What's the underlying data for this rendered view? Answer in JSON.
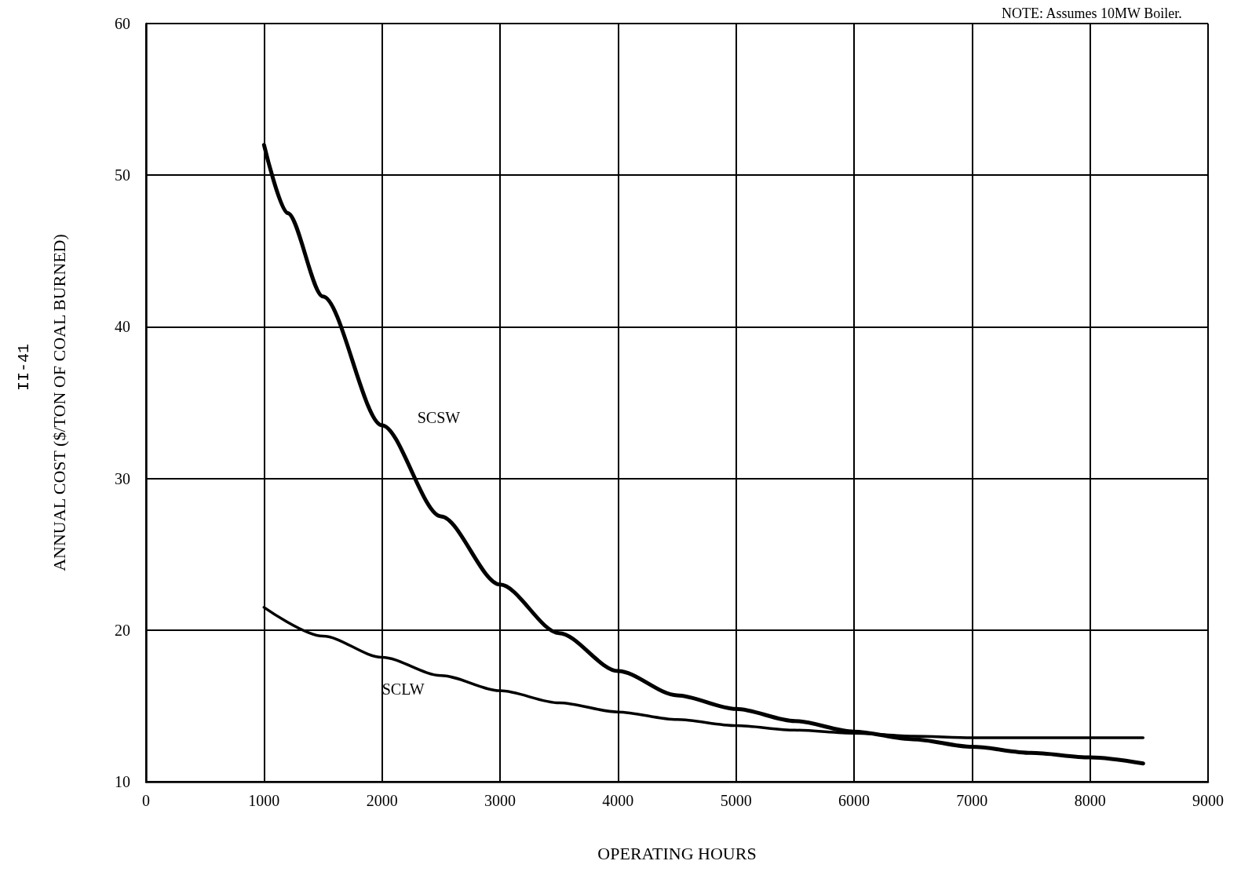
{
  "chart_data": {
    "type": "line",
    "xlabel": "OPERATING HOURS",
    "ylabel": "ANNUAL COST ($/TON OF COAL BURNED)",
    "annotations": [
      "NOTE: Assumes 10MW Boiler.",
      "II-41"
    ],
    "xlim": [
      0,
      9000
    ],
    "xticks": [
      0,
      1000,
      2000,
      3000,
      4000,
      5000,
      6000,
      7000,
      8000,
      9000
    ],
    "ylim": [
      10,
      60
    ],
    "yticks": [
      10,
      20,
      30,
      40,
      50,
      60
    ],
    "grid": true,
    "legend": false,
    "marker": "none",
    "line_style": "solid",
    "series": [
      {
        "name": "SCSW",
        "color": "#000000",
        "x": [
          1000,
          1200,
          1500,
          2000,
          2500,
          3000,
          3500,
          4000,
          4500,
          5000,
          5500,
          6000,
          6500,
          7000,
          7500,
          8000,
          8450
        ],
        "values": [
          52,
          47.5,
          42,
          33.5,
          27.5,
          23,
          19.8,
          17.3,
          15.7,
          14.8,
          14,
          13.3,
          12.8,
          12.3,
          11.9,
          11.6,
          11.2
        ]
      },
      {
        "name": "SCLW",
        "color": "#000000",
        "x": [
          1000,
          1500,
          2000,
          2500,
          3000,
          3500,
          4000,
          4500,
          5000,
          5500,
          6000,
          6500,
          7000,
          8450
        ],
        "values": [
          21.5,
          19.6,
          18.2,
          17,
          16,
          15.2,
          14.6,
          14.1,
          13.7,
          13.4,
          13.2,
          13,
          12.9,
          12.9
        ]
      }
    ]
  }
}
